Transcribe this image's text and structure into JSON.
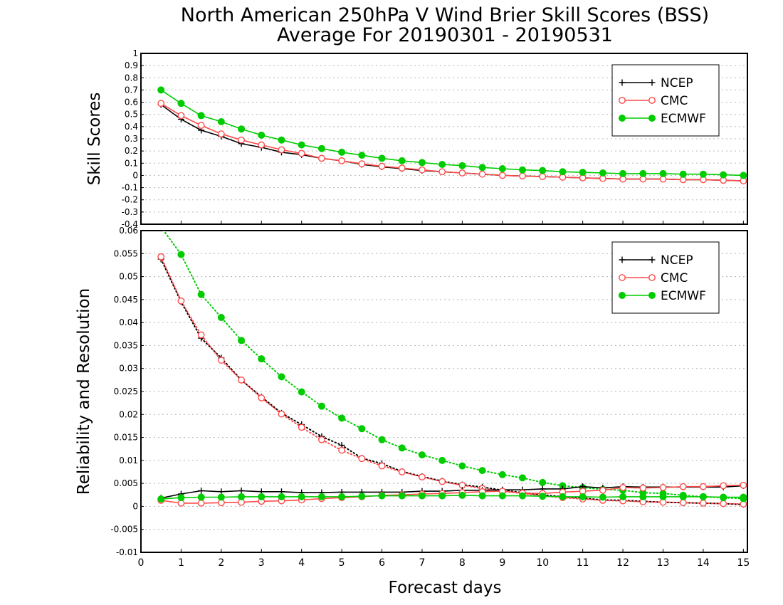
{
  "chart_data": [
    {
      "type": "line",
      "title": "North American 250hPa V Wind Brier Skill Scores (BSS)",
      "subtitle": "Average For 20190301 - 20190531",
      "ylabel": "Skill Scores",
      "xlabel": "",
      "xlim": [
        0,
        15.1
      ],
      "ylim": [
        -0.4,
        1
      ],
      "y_ticks": [
        "-0.4",
        "-0.3",
        "-0.2",
        "-0.1",
        "0",
        "0.1",
        "0.2",
        "0.3",
        "0.4",
        "0.5",
        "0.6",
        "0.7",
        "0.8",
        "0.9",
        "1"
      ],
      "grid": true,
      "legend_position": "top-right",
      "x": [
        0.5,
        1,
        1.5,
        2,
        2.5,
        3,
        3.5,
        4,
        4.5,
        5,
        5.5,
        6,
        6.5,
        7,
        7.5,
        8,
        8.5,
        9,
        9.5,
        10,
        10.5,
        11,
        11.5,
        12,
        12.5,
        13,
        13.5,
        14,
        14.5,
        15
      ],
      "series": [
        {
          "name": "NCEP",
          "color": "#000000",
          "marker": "plus",
          "line": "solid",
          "values": [
            0.58,
            0.46,
            0.37,
            0.32,
            0.26,
            0.23,
            0.19,
            0.17,
            0.14,
            0.12,
            0.09,
            0.07,
            0.055,
            0.04,
            0.03,
            0.02,
            0.01,
            0.0,
            -0.005,
            -0.01,
            -0.015,
            -0.02,
            -0.025,
            -0.03,
            -0.03,
            -0.03,
            -0.035,
            -0.035,
            -0.04,
            -0.045
          ]
        },
        {
          "name": "CMC",
          "color": "#ff4a4a",
          "marker": "open-circle",
          "line": "solid",
          "values": [
            0.59,
            0.49,
            0.41,
            0.34,
            0.29,
            0.25,
            0.21,
            0.18,
            0.14,
            0.12,
            0.095,
            0.075,
            0.06,
            0.045,
            0.03,
            0.02,
            0.01,
            0.0,
            -0.005,
            -0.01,
            -0.015,
            -0.02,
            -0.025,
            -0.03,
            -0.03,
            -0.03,
            -0.035,
            -0.035,
            -0.04,
            -0.045
          ]
        },
        {
          "name": "ECMWF",
          "color": "#00cc00",
          "marker": "filled-circle",
          "line": "solid",
          "values": [
            0.7,
            0.59,
            0.49,
            0.44,
            0.38,
            0.33,
            0.29,
            0.25,
            0.22,
            0.19,
            0.165,
            0.14,
            0.12,
            0.105,
            0.09,
            0.08,
            0.065,
            0.055,
            0.045,
            0.04,
            0.03,
            0.025,
            0.02,
            0.015,
            0.015,
            0.015,
            0.01,
            0.01,
            0.005,
            0.0
          ]
        }
      ]
    },
    {
      "type": "line",
      "ylabel": "Reliability and Resolution",
      "xlabel": "Forecast days",
      "xlim": [
        0,
        15.1
      ],
      "ylim": [
        -0.01,
        0.06
      ],
      "x_ticks": [
        "0",
        "1",
        "2",
        "3",
        "4",
        "5",
        "6",
        "7",
        "8",
        "9",
        "10",
        "11",
        "12",
        "13",
        "14",
        "15"
      ],
      "y_ticks": [
        "-0.01",
        "-0.005",
        "0",
        "0.005",
        "0.01",
        "0.015",
        "0.02",
        "0.025",
        "0.03",
        "0.035",
        "0.04",
        "0.045",
        "0.05",
        "0.055",
        "0.06"
      ],
      "grid": true,
      "legend_position": "top-right",
      "x": [
        0.5,
        1,
        1.5,
        2,
        2.5,
        3,
        3.5,
        4,
        4.5,
        5,
        5.5,
        6,
        6.5,
        7,
        7.5,
        8,
        8.5,
        9,
        9.5,
        10,
        10.5,
        11,
        11.5,
        12,
        12.5,
        13,
        13.5,
        14,
        14.5,
        15
      ],
      "series": [
        {
          "name": "NCEP",
          "color": "#000000",
          "marker": "plus",
          "line": "solid",
          "role": "reliability",
          "values": [
            0.0018,
            0.0027,
            0.0034,
            0.0032,
            0.0034,
            0.0032,
            0.0032,
            0.003,
            0.003,
            0.0031,
            0.0031,
            0.0031,
            0.0031,
            0.0033,
            0.0033,
            0.0035,
            0.0035,
            0.0036,
            0.0036,
            0.0038,
            0.0038,
            0.0043,
            0.004,
            0.0043,
            0.0042,
            0.0042,
            0.0042,
            0.0042,
            0.0042,
            0.0045
          ]
        },
        {
          "name": "CMC",
          "color": "#ff4a4a",
          "marker": "open-circle",
          "line": "solid",
          "role": "reliability",
          "values": [
            0.0013,
            0.0007,
            0.0007,
            0.0008,
            0.0009,
            0.0011,
            0.0012,
            0.0014,
            0.0017,
            0.0019,
            0.0021,
            0.0024,
            0.0025,
            0.0027,
            0.0028,
            0.003,
            0.0032,
            0.0033,
            0.0029,
            0.0028,
            0.0031,
            0.0033,
            0.0035,
            0.0041,
            0.004,
            0.0041,
            0.0043,
            0.0043,
            0.0045,
            0.0046
          ]
        },
        {
          "name": "ECMWF",
          "color": "#00cc00",
          "marker": "filled-circle",
          "line": "solid",
          "role": "reliability",
          "values": [
            0.0016,
            0.0019,
            0.002,
            0.002,
            0.0021,
            0.0021,
            0.0021,
            0.0021,
            0.0021,
            0.0021,
            0.0022,
            0.0023,
            0.0023,
            0.0023,
            0.0023,
            0.0024,
            0.0023,
            0.0023,
            0.0023,
            0.0022,
            0.0021,
            0.0021,
            0.002,
            0.0021,
            0.0021,
            0.0021,
            0.0021,
            0.0021,
            0.002,
            0.002
          ]
        },
        {
          "name": "NCEP",
          "color": "#000000",
          "marker": "plus",
          "line": "dotted",
          "role": "resolution",
          "values": [
            0.0538,
            0.0445,
            0.0366,
            0.0323,
            0.0275,
            0.0238,
            0.0203,
            0.0178,
            0.0152,
            0.0133,
            0.0105,
            0.0093,
            0.0076,
            0.0065,
            0.0055,
            0.0047,
            0.0042,
            0.0035,
            0.003,
            0.0025,
            0.0021,
            0.0018,
            0.0014,
            0.0013,
            0.0011,
            0.0009,
            0.0008,
            0.0007,
            0.0006,
            0.0004
          ]
        },
        {
          "name": "CMC",
          "color": "#ff4a4a",
          "marker": "open-circle",
          "line": "dotted",
          "role": "resolution",
          "values": [
            0.0543,
            0.0447,
            0.0373,
            0.0318,
            0.0275,
            0.0236,
            0.0201,
            0.0172,
            0.0145,
            0.0122,
            0.0104,
            0.0088,
            0.0075,
            0.0064,
            0.0054,
            0.0046,
            0.0039,
            0.0033,
            0.0028,
            0.0023,
            0.0019,
            0.0016,
            0.0013,
            0.0012,
            0.001,
            0.0009,
            0.0008,
            0.0007,
            0.0006,
            0.0005
          ]
        },
        {
          "name": "ECMWF",
          "color": "#00cc00",
          "marker": "filled-circle",
          "line": "dotted",
          "role": "resolution",
          "values": [
            0.0608,
            0.0548,
            0.0461,
            0.0411,
            0.0361,
            0.0321,
            0.0282,
            0.0249,
            0.0218,
            0.0192,
            0.0169,
            0.0145,
            0.0127,
            0.0112,
            0.01,
            0.0088,
            0.0078,
            0.0069,
            0.0062,
            0.0052,
            0.0045,
            0.0041,
            0.0037,
            0.0035,
            0.003,
            0.0028,
            0.0024,
            0.0021,
            0.0019,
            0.0017
          ]
        }
      ]
    }
  ]
}
